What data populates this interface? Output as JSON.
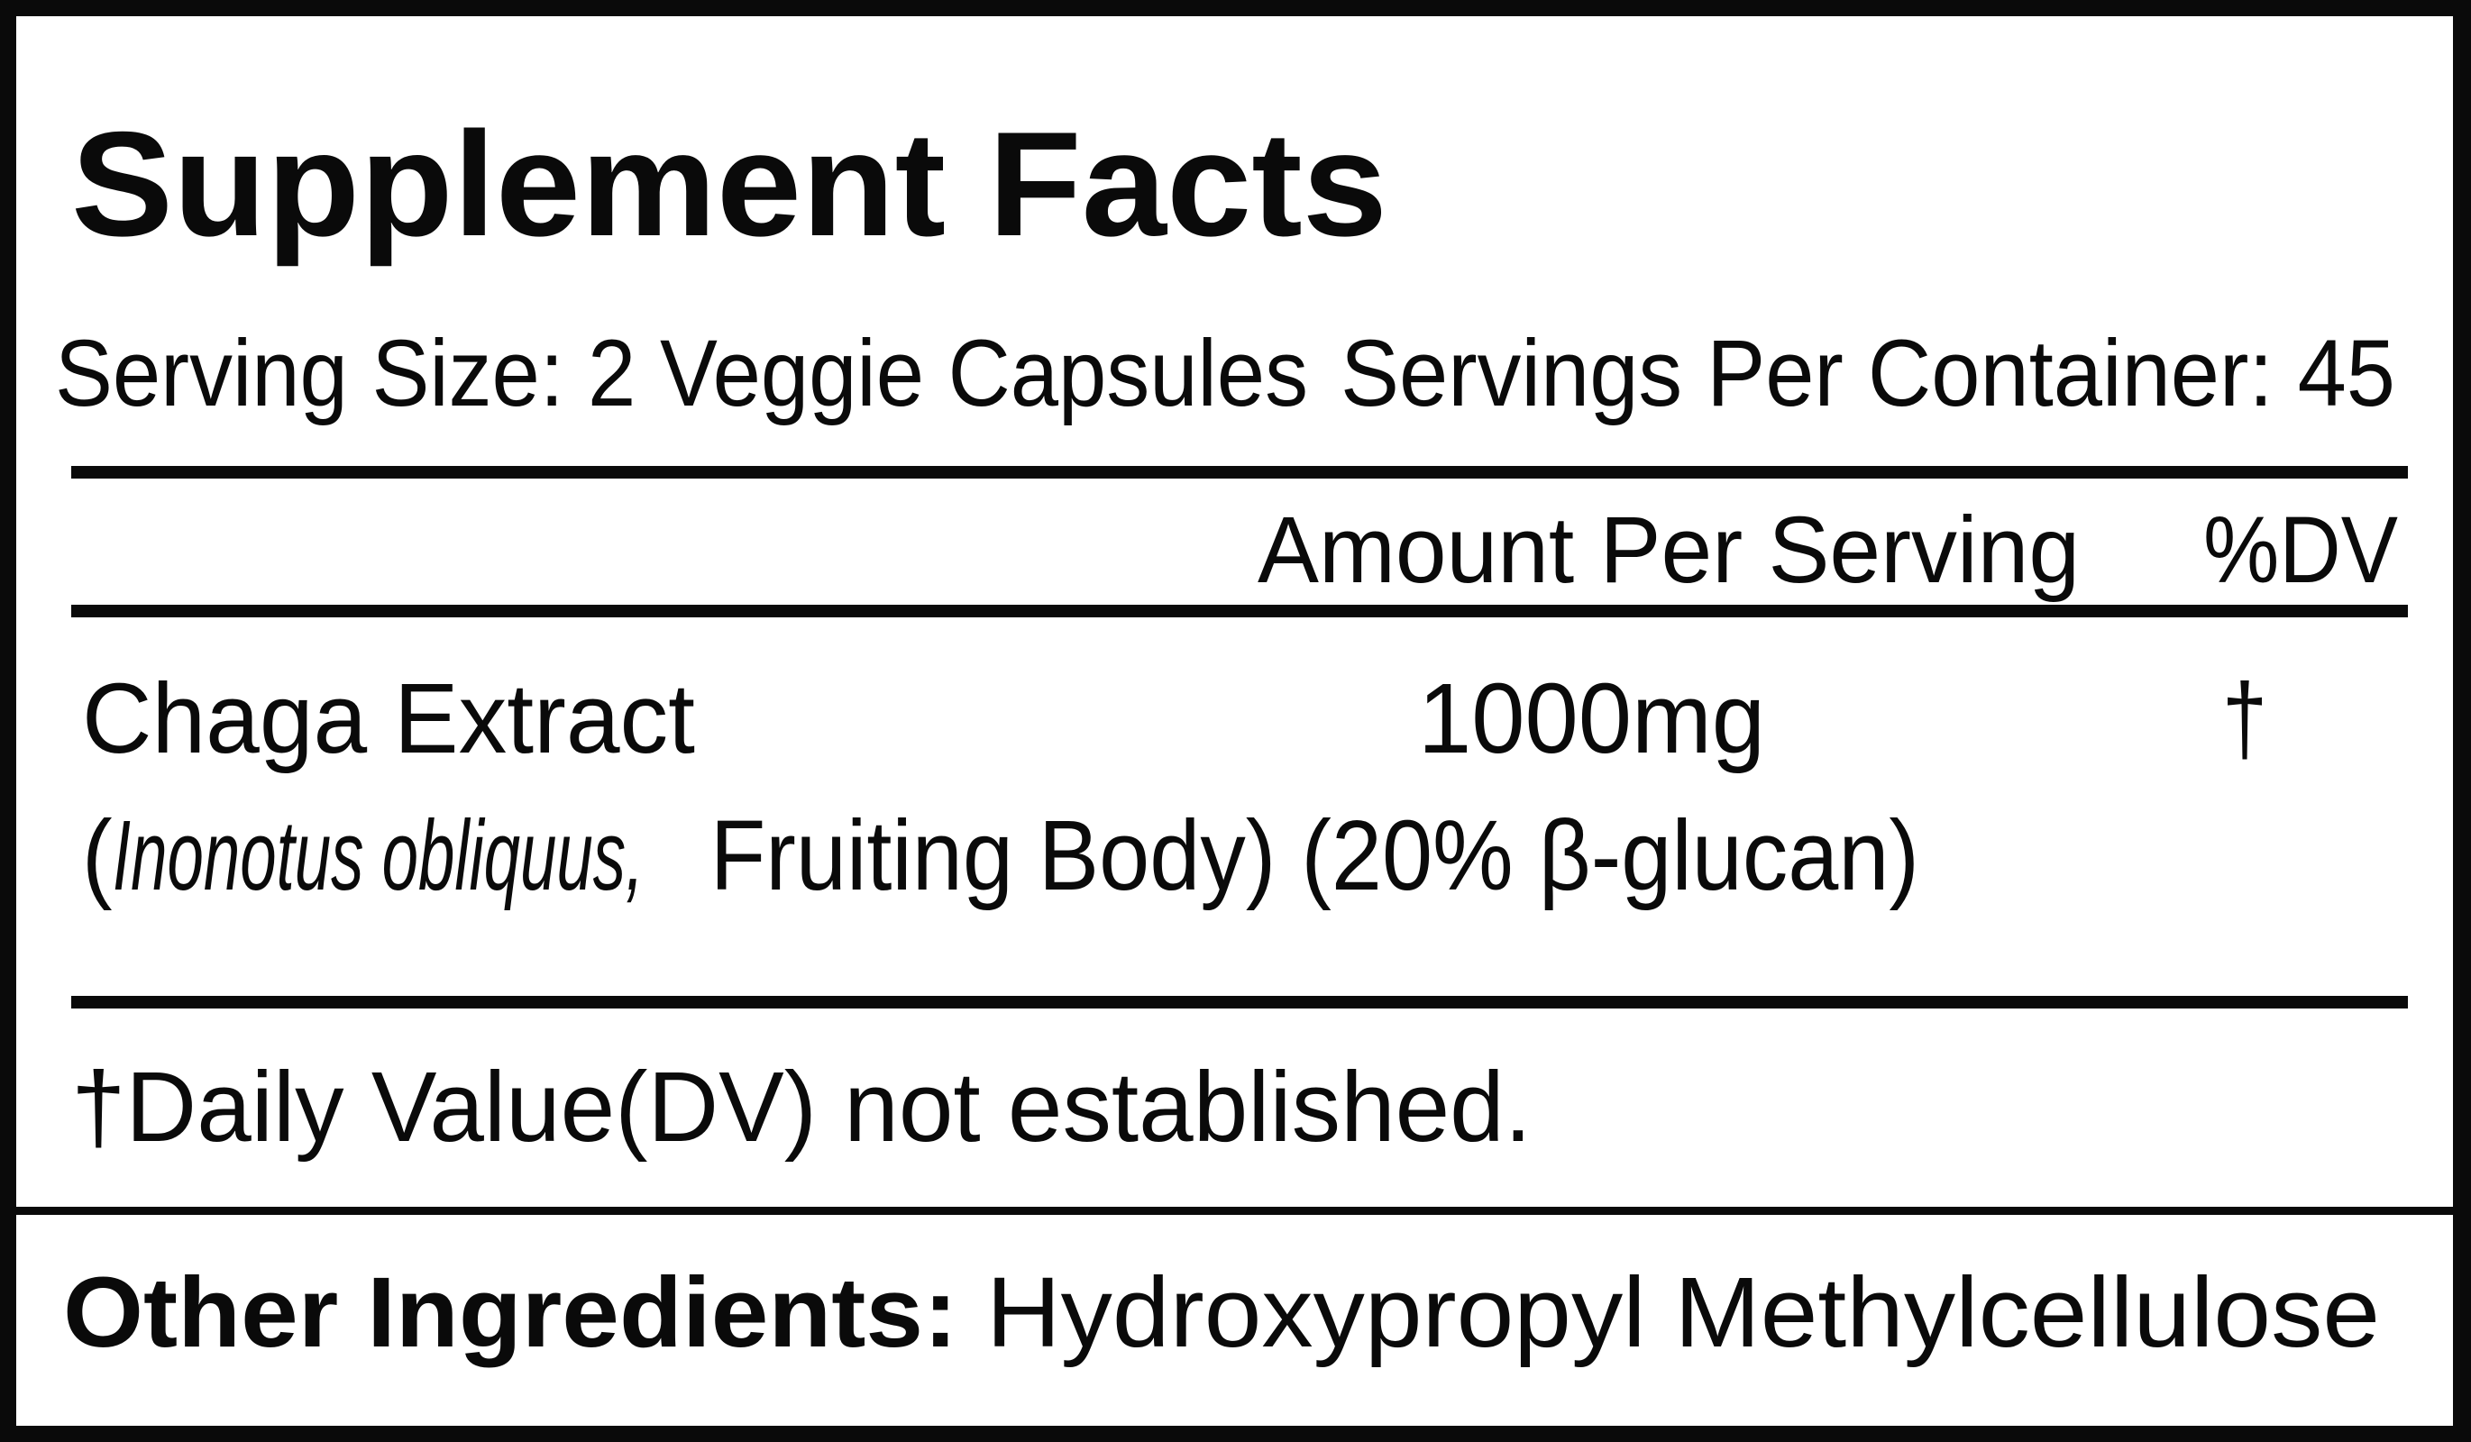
{
  "title": "Supplement Facts",
  "serving": {
    "serving_size": "Serving Size: 2 Veggie Capsules",
    "servings_per_container": "Servings Per Container: 45"
  },
  "columns": {
    "amount": "Amount Per Serving",
    "dv": "%DV"
  },
  "ingredients": [
    {
      "name": "Chaga Extract",
      "amount": "1000mg",
      "dv": "†",
      "detail_open": "(",
      "latin_name": "Inonotus obliquus,",
      "detail_rest": " Fruiting Body) (20% β-glucan)"
    }
  ],
  "footnote": "†Daily Value(DV) not established.",
  "other_ingredients": {
    "label": "Other Ingredients:",
    "value": "Hydroxypropyl Methylcellulose"
  },
  "colors": {
    "ink": "#0a0a0a",
    "background": "#ffffff"
  }
}
